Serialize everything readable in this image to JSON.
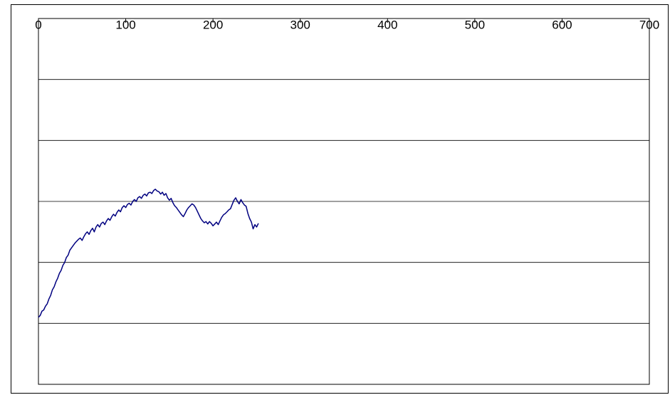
{
  "chart_data": {
    "type": "line",
    "title": "",
    "xlabel": "",
    "ylabel": "",
    "xlim": [
      0,
      700
    ],
    "x_ticks": [
      0,
      100,
      200,
      300,
      400,
      500,
      600,
      700
    ],
    "x_tick_labels": [
      "0",
      "100",
      "200",
      "300",
      "400",
      "500",
      "600",
      "700"
    ],
    "x_axis_position": "top",
    "ylim": [
      0,
      6
    ],
    "y_tick_labels_shown": false,
    "grid": "horizontal",
    "legend": "none",
    "colors": {
      "series": "#000080",
      "grid": "#000000",
      "background": "#ffffff"
    },
    "series": [
      {
        "points": [
          [
            0,
            1.1
          ],
          [
            2,
            1.13
          ],
          [
            4,
            1.2
          ],
          [
            6,
            1.22
          ],
          [
            8,
            1.28
          ],
          [
            10,
            1.32
          ],
          [
            12,
            1.4
          ],
          [
            14,
            1.46
          ],
          [
            16,
            1.55
          ],
          [
            18,
            1.6
          ],
          [
            20,
            1.68
          ],
          [
            22,
            1.74
          ],
          [
            24,
            1.82
          ],
          [
            26,
            1.87
          ],
          [
            28,
            1.95
          ],
          [
            30,
            2.0
          ],
          [
            32,
            2.08
          ],
          [
            34,
            2.12
          ],
          [
            36,
            2.2
          ],
          [
            38,
            2.24
          ],
          [
            40,
            2.28
          ],
          [
            42,
            2.32
          ],
          [
            44,
            2.35
          ],
          [
            46,
            2.38
          ],
          [
            48,
            2.4
          ],
          [
            50,
            2.36
          ],
          [
            52,
            2.42
          ],
          [
            54,
            2.47
          ],
          [
            56,
            2.5
          ],
          [
            58,
            2.46
          ],
          [
            60,
            2.52
          ],
          [
            62,
            2.56
          ],
          [
            64,
            2.5
          ],
          [
            66,
            2.58
          ],
          [
            68,
            2.62
          ],
          [
            70,
            2.58
          ],
          [
            72,
            2.64
          ],
          [
            74,
            2.66
          ],
          [
            76,
            2.62
          ],
          [
            78,
            2.68
          ],
          [
            80,
            2.72
          ],
          [
            82,
            2.69
          ],
          [
            84,
            2.75
          ],
          [
            86,
            2.79
          ],
          [
            88,
            2.76
          ],
          [
            90,
            2.82
          ],
          [
            92,
            2.86
          ],
          [
            94,
            2.83
          ],
          [
            96,
            2.9
          ],
          [
            98,
            2.93
          ],
          [
            100,
            2.9
          ],
          [
            102,
            2.95
          ],
          [
            104,
            2.97
          ],
          [
            106,
            2.94
          ],
          [
            108,
            3.0
          ],
          [
            110,
            3.03
          ],
          [
            112,
            3.0
          ],
          [
            114,
            3.06
          ],
          [
            116,
            3.08
          ],
          [
            118,
            3.05
          ],
          [
            120,
            3.1
          ],
          [
            122,
            3.12
          ],
          [
            124,
            3.09
          ],
          [
            126,
            3.14
          ],
          [
            128,
            3.15
          ],
          [
            130,
            3.13
          ],
          [
            132,
            3.18
          ],
          [
            134,
            3.2
          ],
          [
            136,
            3.17
          ],
          [
            138,
            3.16
          ],
          [
            140,
            3.12
          ],
          [
            142,
            3.15
          ],
          [
            144,
            3.1
          ],
          [
            146,
            3.13
          ],
          [
            148,
            3.06
          ],
          [
            150,
            3.02
          ],
          [
            152,
            3.05
          ],
          [
            154,
            2.98
          ],
          [
            156,
            2.93
          ],
          [
            158,
            2.9
          ],
          [
            160,
            2.86
          ],
          [
            162,
            2.82
          ],
          [
            164,
            2.78
          ],
          [
            166,
            2.75
          ],
          [
            168,
            2.8
          ],
          [
            170,
            2.86
          ],
          [
            172,
            2.9
          ],
          [
            174,
            2.93
          ],
          [
            176,
            2.96
          ],
          [
            178,
            2.94
          ],
          [
            180,
            2.9
          ],
          [
            182,
            2.84
          ],
          [
            184,
            2.78
          ],
          [
            186,
            2.72
          ],
          [
            188,
            2.68
          ],
          [
            190,
            2.65
          ],
          [
            192,
            2.67
          ],
          [
            194,
            2.63
          ],
          [
            196,
            2.67
          ],
          [
            198,
            2.64
          ],
          [
            200,
            2.6
          ],
          [
            202,
            2.63
          ],
          [
            204,
            2.66
          ],
          [
            206,
            2.62
          ],
          [
            208,
            2.68
          ],
          [
            210,
            2.74
          ],
          [
            212,
            2.78
          ],
          [
            214,
            2.8
          ],
          [
            216,
            2.83
          ],
          [
            218,
            2.86
          ],
          [
            220,
            2.88
          ],
          [
            222,
            2.95
          ],
          [
            224,
            3.02
          ],
          [
            226,
            3.06
          ],
          [
            228,
            3.0
          ],
          [
            230,
            2.96
          ],
          [
            232,
            3.03
          ],
          [
            234,
            2.98
          ],
          [
            236,
            2.94
          ],
          [
            238,
            2.92
          ],
          [
            240,
            2.8
          ],
          [
            242,
            2.72
          ],
          [
            244,
            2.66
          ],
          [
            246,
            2.55
          ],
          [
            248,
            2.62
          ],
          [
            250,
            2.58
          ],
          [
            252,
            2.64
          ]
        ]
      }
    ]
  }
}
